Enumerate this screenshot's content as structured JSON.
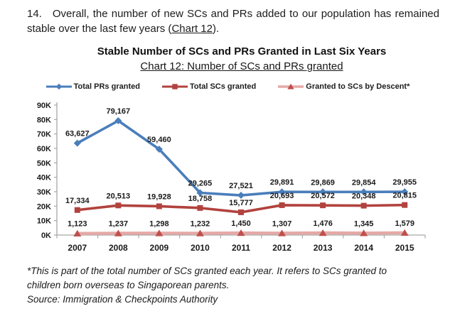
{
  "document": {
    "paragraph": {
      "number": "14.",
      "text_before": "Overall, the number of new SCs and PRs added to our population has remained stable over the last few years (",
      "reference": "Chart 12",
      "text_after": ")."
    },
    "footnote": "*This is part of the total number of SCs granted each year. It refers to SCs granted to children born overseas to Singaporean parents.",
    "source": "Source: Immigration & Checkpoints Authority"
  },
  "chart_data": {
    "type": "line",
    "title": "Stable Number of SCs and PRs Granted in Last Six Years",
    "subtitle": "Chart 12: Number of SCs and PRs granted",
    "categories": [
      "2007",
      "2008",
      "2009",
      "2010",
      "2011",
      "2012",
      "2013",
      "2014",
      "2015"
    ],
    "series": [
      {
        "name": "Total PRs granted",
        "marker": "diamond",
        "color": "#4A7EBB",
        "marker_color": "#4A7EBB",
        "values": [
          63627,
          79167,
          59460,
          29265,
          27521,
          29891,
          29869,
          29854,
          29955
        ]
      },
      {
        "name": "Total SCs granted",
        "marker": "square",
        "color": "#B2423E",
        "marker_color": "#B2423E",
        "values": [
          17334,
          20513,
          19928,
          18758,
          15777,
          20693,
          20572,
          20348,
          20815
        ]
      },
      {
        "name": "Granted to SCs by Descent*",
        "marker": "triangle",
        "color": "#E5A9A7",
        "marker_color": "#C0504D",
        "values": [
          1123,
          1237,
          1298,
          1232,
          1450,
          1307,
          1476,
          1345,
          1579
        ]
      }
    ],
    "ylim": [
      0,
      90000
    ],
    "ytick_step": 10000,
    "ytick_format": "K",
    "xlabel": "",
    "ylabel": "",
    "grid": false,
    "legend_position": "top",
    "data_labels": true,
    "axis_color": "#A6A6A6"
  }
}
